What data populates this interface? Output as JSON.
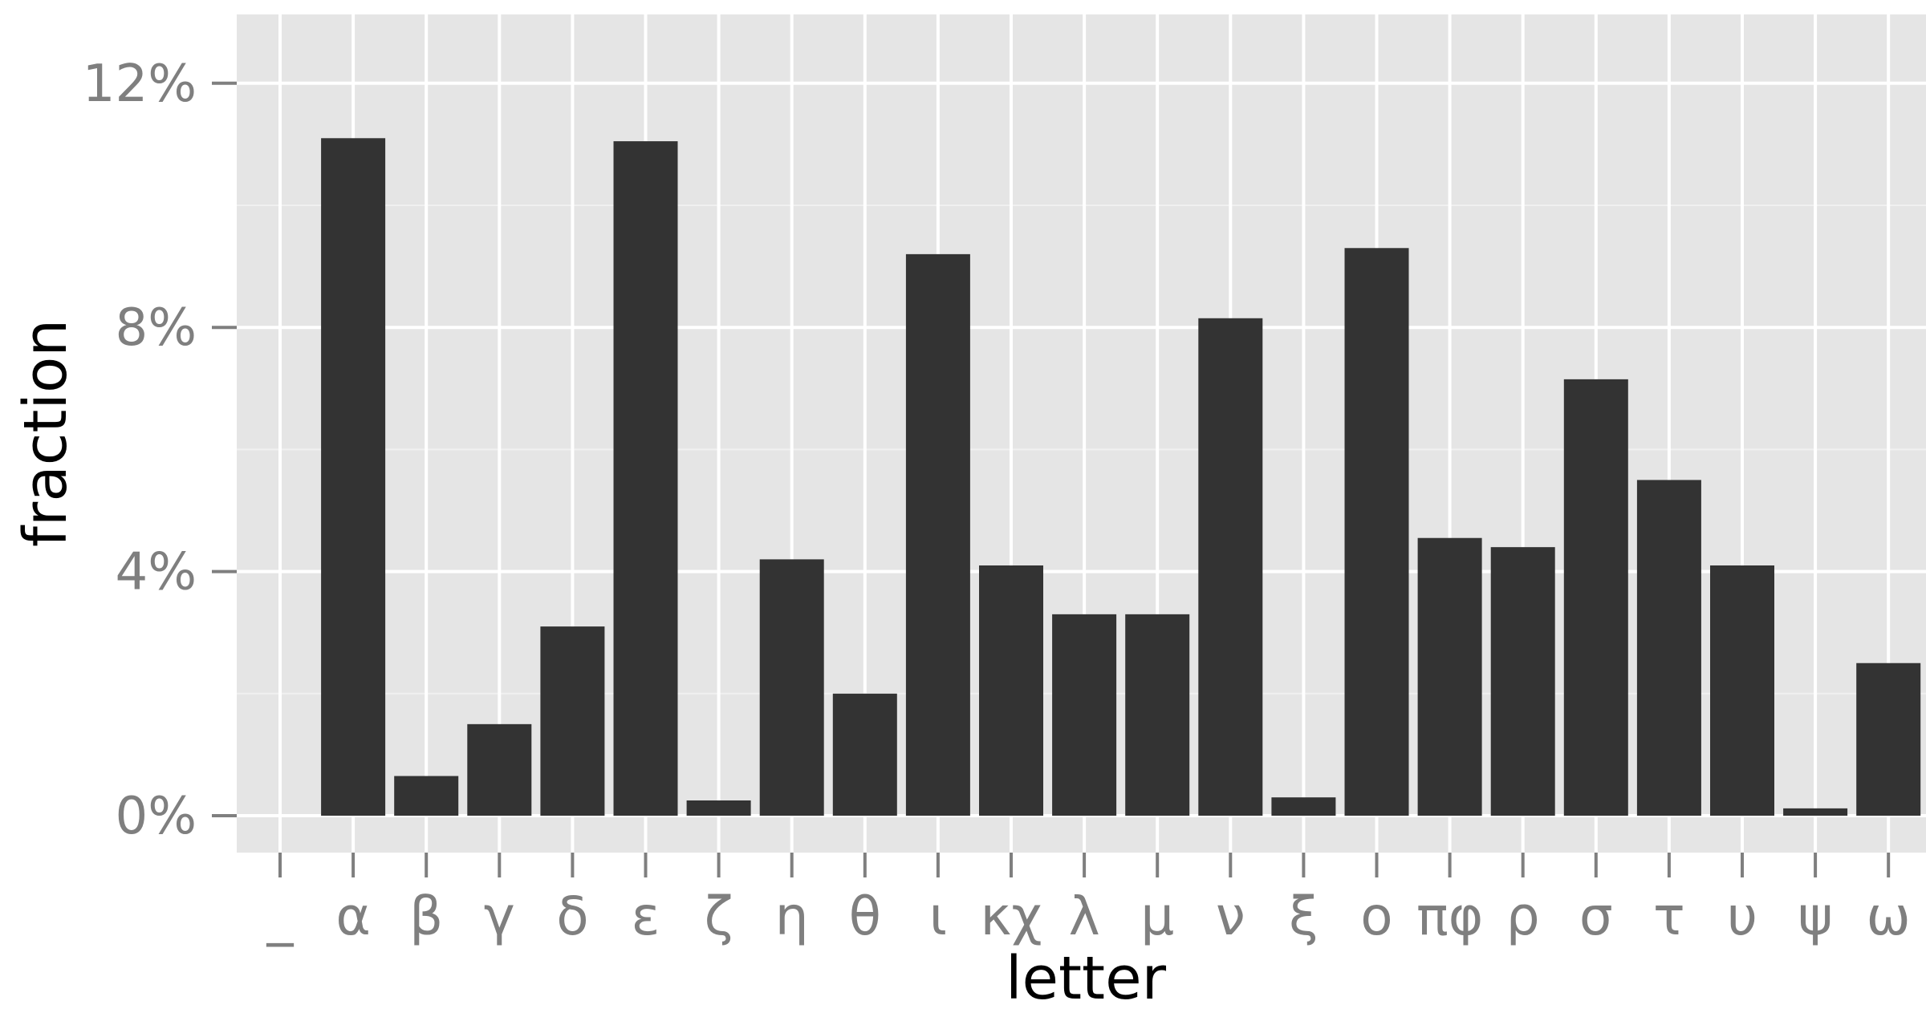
{
  "chart_data": {
    "type": "bar",
    "xlabel": "letter",
    "ylabel": "fraction",
    "ylim": [
      0,
      13
    ],
    "y_ticks": [
      0,
      4,
      8,
      12
    ],
    "y_tick_labels": [
      "0%",
      "4%",
      "8%",
      "12%"
    ],
    "categories": [
      "_",
      "α",
      "β",
      "γ",
      "δ",
      "ε",
      "ζ",
      "η",
      "θ",
      "ι",
      "κχ",
      "λ",
      "μ",
      "ν",
      "ξ",
      "ο",
      "πφ",
      "ρ",
      "σ",
      "τ",
      "υ",
      "ψ",
      "ω"
    ],
    "values": [
      0,
      11.1,
      0.65,
      1.5,
      3.1,
      11.05,
      0.25,
      4.2,
      2.0,
      9.2,
      4.1,
      3.3,
      3.3,
      8.15,
      0.3,
      9.3,
      4.55,
      4.4,
      7.15,
      5.5,
      4.1,
      0.12,
      2.5
    ],
    "grid": true,
    "colors": {
      "panel_background": "#e5e5e5",
      "grid_major": "#ffffff",
      "grid_minor": "#f0f0f0",
      "bar_fill": "#333333",
      "tick_label": "#7f7f7f",
      "tick_mark": "#7f7f7f",
      "axis_title": "#000000"
    }
  }
}
